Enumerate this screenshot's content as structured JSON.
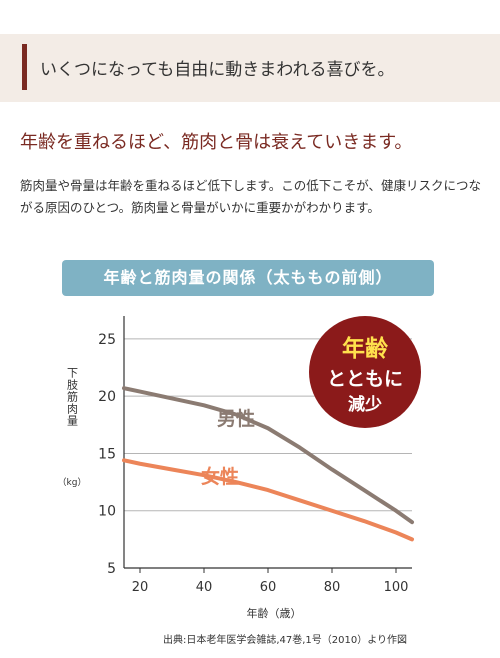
{
  "header": {
    "text": "いくつになっても自由に動きまわれる喜びを。"
  },
  "subtitle": "年齢を重ねるほど、筋肉と骨は衰えていきます。",
  "body_text": "筋肉量や骨量は年齢を重ねるほど低下します。この低下こそが、健康リスクにつながる原因のひとつ。筋肉量と骨量がいかに重要かがわかります。",
  "chart_title": "年齢と筋肉量の関係（太ももの前側）",
  "badge": {
    "line1": "年齢",
    "line2": "とともに",
    "line3": "減少"
  },
  "source": "出典:日本老年医学会雑誌,47巻,1号（2010）より作図",
  "colors": {
    "male": "#8b7b72",
    "female": "#ec8559",
    "badge": "#8b1a1a",
    "badge_accent": "#ffe14d",
    "title_bg": "#7fb2c4"
  },
  "chart_data": {
    "type": "line",
    "title": "年齢と筋肉量の関係（太ももの前側）",
    "xlabel": "年齢（歳）",
    "ylabel": "下肢筋肉量",
    "yunit": "（kg）",
    "xlim": [
      15,
      105
    ],
    "ylim": [
      5,
      27
    ],
    "xticks": [
      20,
      40,
      60,
      80,
      100
    ],
    "yticks": [
      5,
      10,
      15,
      20,
      25
    ],
    "grid": true,
    "series": [
      {
        "name": "男性",
        "x": [
          15,
          20,
          30,
          40,
          50,
          60,
          70,
          80,
          90,
          100,
          105
        ],
        "y": [
          20.7,
          20.4,
          19.8,
          19.2,
          18.4,
          17.2,
          15.5,
          13.6,
          11.8,
          10.0,
          9.0
        ]
      },
      {
        "name": "女性",
        "x": [
          15,
          20,
          30,
          40,
          50,
          60,
          70,
          80,
          90,
          100,
          105
        ],
        "y": [
          14.4,
          14.1,
          13.6,
          13.1,
          12.5,
          11.8,
          10.9,
          10.0,
          9.1,
          8.1,
          7.5
        ]
      }
    ]
  }
}
